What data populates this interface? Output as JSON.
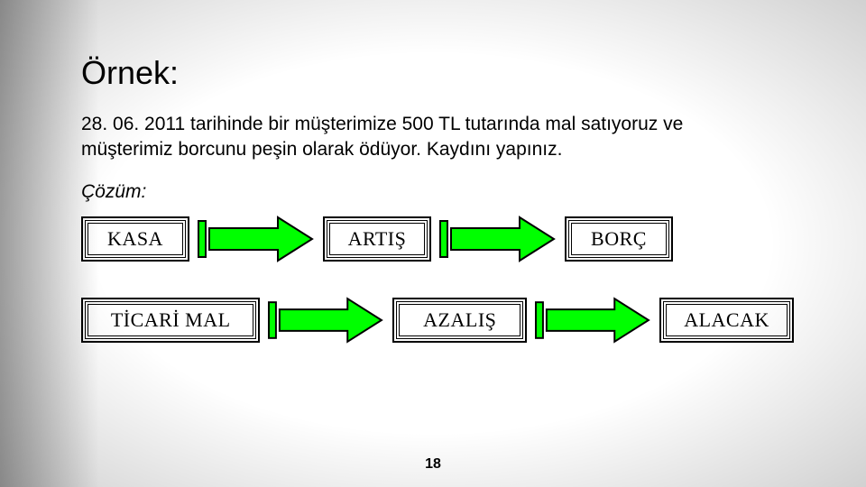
{
  "title": "Örnek:",
  "body": "28. 06. 2011 tarihinde bir müşterimize 500 TL tutarında mal satıyoruz ve müşterimiz borcunu peşin olarak ödüyor. Kaydını yapınız.",
  "subheading": "Çözüm:",
  "page_number": "18",
  "colors": {
    "arrow_fill": "#00ff00",
    "arrow_stroke": "#000000",
    "box_border": "#000000",
    "text_color": "#000000",
    "background": "#ffffff"
  },
  "diagram": {
    "rows": [
      {
        "cells": [
          {
            "type": "box",
            "label": "KASA",
            "size": "s"
          },
          {
            "type": "arrow"
          },
          {
            "type": "box",
            "label": "ARTIŞ",
            "size": "s"
          },
          {
            "type": "arrow"
          },
          {
            "type": "box",
            "label": "BORÇ",
            "size": "s"
          }
        ]
      },
      {
        "cells": [
          {
            "type": "box",
            "label": "TİCARİ MAL",
            "size": "l"
          },
          {
            "type": "arrow"
          },
          {
            "type": "box",
            "label": "AZALIŞ",
            "size": "m"
          },
          {
            "type": "arrow"
          },
          {
            "type": "box",
            "label": "ALACAK",
            "size": "m"
          }
        ]
      }
    ]
  }
}
